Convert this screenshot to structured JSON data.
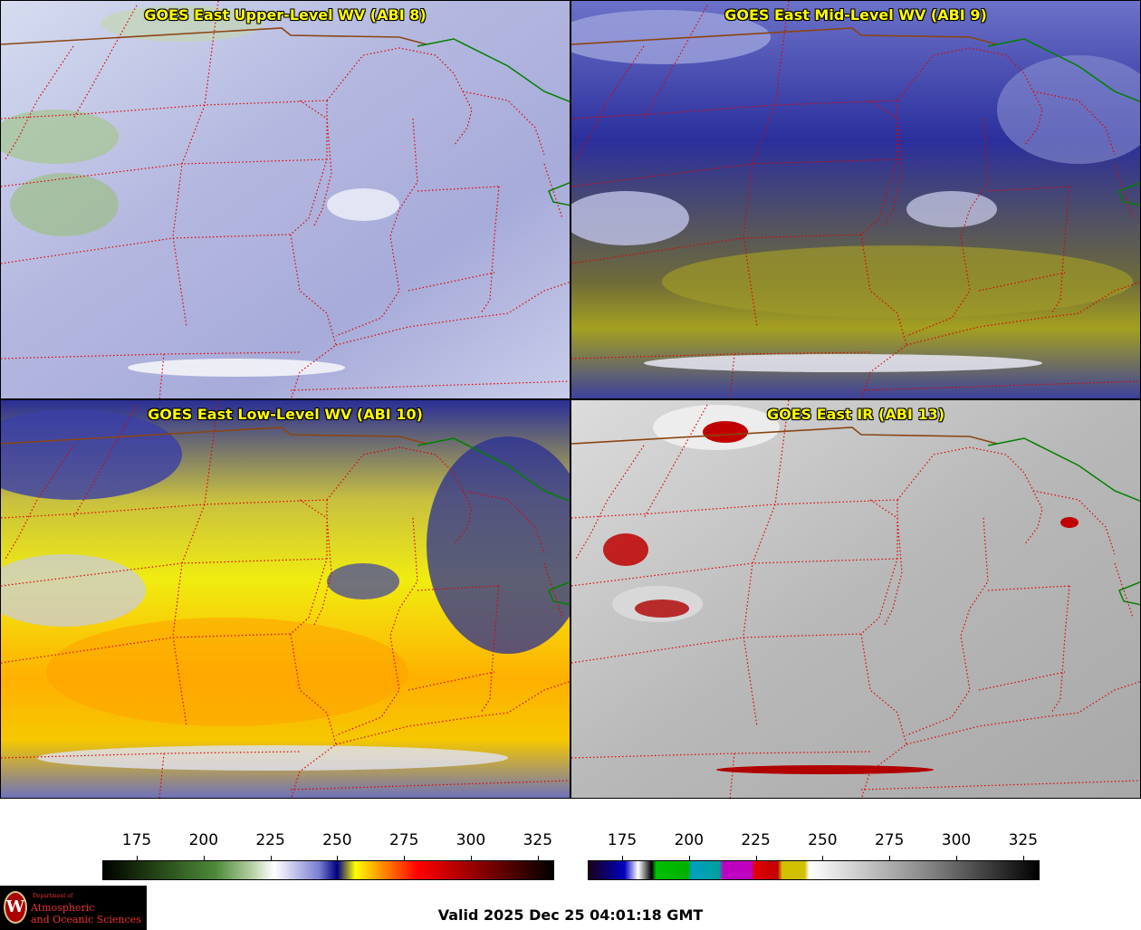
{
  "panels": [
    {
      "title": "GOES East Upper-Level WV (ABI 8)"
    },
    {
      "title": "GOES East Mid-Level WV (ABI 9)"
    },
    {
      "title": "GOES East Low-Level WV (ABI 10)"
    },
    {
      "title": "GOES East IR (ABI 13)"
    }
  ],
  "colorbars": {
    "wv": {
      "ticks": [
        "175",
        "200",
        "225",
        "250",
        "275",
        "300",
        "325"
      ]
    },
    "ir": {
      "ticks": [
        "175",
        "200",
        "225",
        "250",
        "275",
        "300",
        "325"
      ]
    }
  },
  "valid_time": "Valid 2025 Dec 25 04:01:18 GMT",
  "logo": {
    "department": "Department of",
    "line1": "Atmospheric",
    "line2": "and Oceanic Sciences",
    "emblem": "W"
  },
  "colors": {
    "state_border": "#e00000",
    "canada_border": "#8b4513",
    "lake_border": "#008000"
  }
}
